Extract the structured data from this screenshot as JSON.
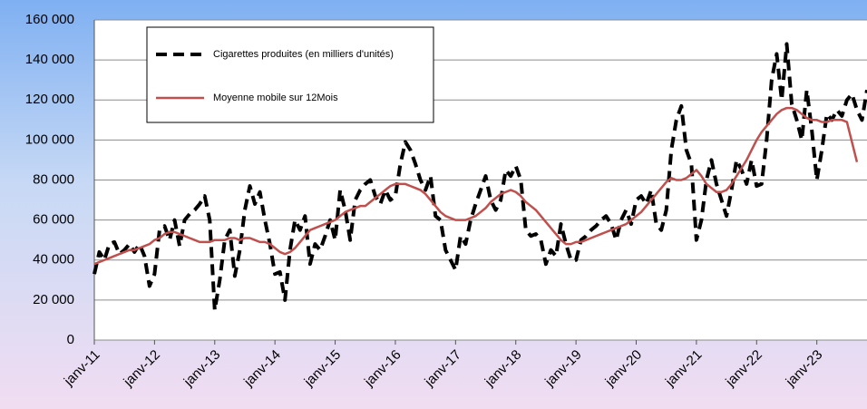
{
  "chart_data": {
    "type": "line",
    "categories": [
      "janv-11",
      null,
      null,
      null,
      null,
      null,
      null,
      null,
      null,
      null,
      null,
      null,
      "janv-12",
      null,
      null,
      null,
      null,
      null,
      null,
      null,
      null,
      null,
      null,
      null,
      "janv-13",
      null,
      null,
      null,
      null,
      null,
      null,
      null,
      null,
      null,
      null,
      null,
      "janv-14",
      null,
      null,
      null,
      null,
      null,
      null,
      null,
      null,
      null,
      null,
      null,
      "janv-15",
      null,
      null,
      null,
      null,
      null,
      null,
      null,
      null,
      null,
      null,
      null,
      "janv-16",
      null,
      null,
      null,
      null,
      null,
      null,
      null,
      null,
      null,
      null,
      null,
      "janv-17",
      null,
      null,
      null,
      null,
      null,
      null,
      null,
      null,
      null,
      null,
      null,
      "janv-18",
      null,
      null,
      null,
      null,
      null,
      null,
      null,
      null,
      null,
      null,
      null,
      "janv-19",
      null,
      null,
      null,
      null,
      null,
      null,
      null,
      null,
      null,
      null,
      null,
      "janv-20",
      null,
      null,
      null,
      null,
      null,
      null,
      null,
      null,
      null,
      null,
      null,
      "janv-21",
      null,
      null,
      null,
      null,
      null,
      null,
      null,
      null,
      null,
      null,
      null,
      "janv-22",
      null,
      null,
      null,
      null,
      null,
      null,
      null,
      null,
      null,
      null,
      null,
      "janv-23",
      null,
      null,
      null,
      null,
      null,
      null,
      null,
      null,
      null,
      null
    ],
    "series": [
      {
        "name": "Cigarettes produites (en milliers d'unités)",
        "color": "#000000",
        "dash": "dashed",
        "values": [
          33000,
          44000,
          40000,
          48000,
          49000,
          43000,
          45000,
          48000,
          44000,
          48000,
          42000,
          27000,
          33000,
          55000,
          57000,
          50000,
          60000,
          47000,
          60000,
          63000,
          65000,
          68000,
          72000,
          60000,
          15000,
          30000,
          50000,
          55000,
          32000,
          45000,
          65000,
          77000,
          68000,
          74000,
          60000,
          48000,
          33000,
          34000,
          20000,
          45000,
          60000,
          55000,
          62000,
          38000,
          48000,
          45000,
          52000,
          60000,
          50000,
          75000,
          65000,
          50000,
          70000,
          75000,
          78000,
          80000,
          72000,
          68000,
          75000,
          70000,
          72000,
          88000,
          99000,
          95000,
          88000,
          80000,
          75000,
          82000,
          62000,
          60000,
          45000,
          40000,
          35000,
          52000,
          48000,
          60000,
          68000,
          75000,
          82000,
          70000,
          65000,
          70000,
          85000,
          82000,
          87000,
          80000,
          55000,
          52000,
          53000,
          50000,
          38000,
          45000,
          42000,
          58000,
          48000,
          40000,
          40000,
          50000,
          52000,
          55000,
          57000,
          60000,
          62000,
          58000,
          50000,
          60000,
          65000,
          58000,
          70000,
          72000,
          68000,
          75000,
          58000,
          55000,
          65000,
          95000,
          110000,
          117000,
          95000,
          88000,
          50000,
          60000,
          80000,
          90000,
          78000,
          70000,
          62000,
          75000,
          90000,
          85000,
          78000,
          90000,
          77000,
          78000,
          100000,
          130000,
          143000,
          120000,
          148000,
          118000,
          110000,
          100000,
          125000,
          105000,
          80000,
          95000,
          113000,
          110000,
          115000,
          112000,
          120000,
          123000,
          115000,
          110000,
          125000
        ]
      },
      {
        "name": "Moyenne mobile sur 12Mois",
        "color": "#c0504d",
        "dash": "solid",
        "values": [
          38000,
          39000,
          40000,
          41000,
          42000,
          43000,
          44000,
          45000,
          45000,
          46000,
          47000,
          48000,
          50000,
          51000,
          53000,
          54000,
          54000,
          53000,
          52000,
          51000,
          50000,
          49000,
          49000,
          49000,
          50000,
          50000,
          50000,
          51000,
          51000,
          50000,
          51000,
          51000,
          50000,
          49000,
          49000,
          48000,
          46000,
          44000,
          43000,
          44000,
          46000,
          49000,
          52000,
          55000,
          56000,
          57000,
          58000,
          59000,
          60000,
          62000,
          64000,
          65000,
          66000,
          67000,
          67000,
          69000,
          71000,
          73000,
          75000,
          77000,
          78000,
          78000,
          78000,
          77000,
          76000,
          75000,
          73000,
          70000,
          67000,
          64000,
          62000,
          61000,
          60000,
          60000,
          60000,
          61000,
          62000,
          64000,
          66000,
          69000,
          71000,
          73000,
          74000,
          75000,
          74000,
          72000,
          69000,
          67000,
          65000,
          62000,
          59000,
          56000,
          53000,
          50000,
          48000,
          48000,
          49000,
          49000,
          50000,
          51000,
          52000,
          53000,
          54000,
          55000,
          56000,
          57000,
          58000,
          60000,
          62000,
          64000,
          67000,
          70000,
          73000,
          76000,
          79000,
          81000,
          80000,
          80000,
          81000,
          83000,
          85000,
          82000,
          78000,
          76000,
          74000,
          74000,
          75000,
          78000,
          82000,
          86000,
          90000,
          95000,
          100000,
          104000,
          107000,
          110000,
          113000,
          115000,
          116000,
          116000,
          115000,
          113000,
          111000,
          110000,
          110000,
          109000,
          109000,
          110000,
          110000,
          110000,
          109000,
          99000,
          89000,
          null,
          null
        ]
      }
    ],
    "ylim": [
      0,
      160000
    ],
    "yticks": [
      0,
      {
        "value": 20000,
        "label": "20 000"
      },
      {
        "value": 40000,
        "label": "40 000"
      },
      {
        "value": 60000,
        "label": "60 000"
      },
      {
        "value": 80000,
        "label": "80 000"
      },
      {
        "value": 100000,
        "label": "100 000"
      },
      {
        "value": 120000,
        "label": "120 000"
      },
      {
        "value": 140000,
        "label": "140 000"
      },
      {
        "value": 160000,
        "label": "160 000"
      }
    ],
    "grid": true,
    "legend": "top-left"
  }
}
